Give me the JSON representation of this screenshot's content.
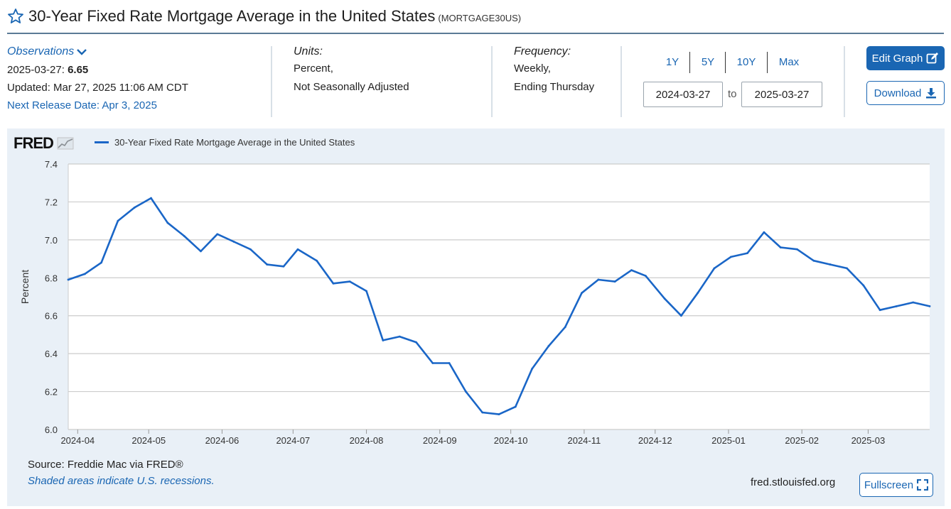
{
  "header": {
    "title": "30-Year Fixed Rate Mortgage Average in the United States",
    "series_id": "(MORTGAGE30US)"
  },
  "observations": {
    "title": "Observations",
    "latest_date": "2025-03-27:",
    "latest_value": "6.65",
    "updated": "Updated: Mar 27, 2025 11:06 AM CDT",
    "next_release": "Next Release Date: Apr 3, 2025"
  },
  "units": {
    "label": "Units:",
    "line1": "Percent,",
    "line2": "Not Seasonally Adjusted"
  },
  "frequency": {
    "label": "Frequency:",
    "line1": "Weekly,",
    "line2": "Ending Thursday"
  },
  "range": {
    "buttons": [
      "1Y",
      "5Y",
      "10Y",
      "Max"
    ],
    "start": "2024-03-27",
    "to_label": "to",
    "end": "2025-03-27"
  },
  "actions": {
    "edit_graph": "Edit Graph",
    "download": "Download",
    "fullscreen": "Fullscreen"
  },
  "footer": {
    "source": "Source: Freddie Mac via FRED®",
    "recession_note": "Shaded areas indicate U.S. recessions.",
    "site": "fred.stlouisfed.org"
  },
  "logo_text": "FRED",
  "colors": {
    "accent": "#1a66b3",
    "series_line": "#1a66c7",
    "chart_background": "#e9f0f7",
    "plot_background": "#ffffff",
    "gridline": "#cccccc"
  },
  "chart_data": {
    "type": "line",
    "title": "",
    "xlabel": "",
    "ylabel": "Percent",
    "ylim": [
      6.0,
      7.4
    ],
    "y_ticks": [
      "6.0",
      "6.2",
      "6.4",
      "6.6",
      "6.8",
      "7.0",
      "7.2",
      "7.4"
    ],
    "x_ticks": [
      "2024-04",
      "2024-05",
      "2024-06",
      "2024-07",
      "2024-08",
      "2024-09",
      "2024-10",
      "2024-11",
      "2024-12",
      "2025-01",
      "2025-02",
      "2025-03"
    ],
    "legend_position": "top-left",
    "grid": true,
    "series": [
      {
        "name": "30-Year Fixed Rate Mortgage Average in the United States",
        "x": [
          "2024-03-28",
          "2024-04-04",
          "2024-04-11",
          "2024-04-18",
          "2024-04-25",
          "2024-05-02",
          "2024-05-09",
          "2024-05-16",
          "2024-05-23",
          "2024-05-30",
          "2024-06-06",
          "2024-06-13",
          "2024-06-20",
          "2024-06-27",
          "2024-07-03",
          "2024-07-11",
          "2024-07-18",
          "2024-07-25",
          "2024-08-01",
          "2024-08-08",
          "2024-08-15",
          "2024-08-22",
          "2024-08-29",
          "2024-09-05",
          "2024-09-12",
          "2024-09-19",
          "2024-09-26",
          "2024-10-03",
          "2024-10-10",
          "2024-10-17",
          "2024-10-24",
          "2024-10-31",
          "2024-11-07",
          "2024-11-14",
          "2024-11-21",
          "2024-11-27",
          "2024-12-05",
          "2024-12-12",
          "2024-12-19",
          "2024-12-26",
          "2025-01-02",
          "2025-01-09",
          "2025-01-16",
          "2025-01-23",
          "2025-01-30",
          "2025-02-06",
          "2025-02-13",
          "2025-02-20",
          "2025-02-27",
          "2025-03-06",
          "2025-03-13",
          "2025-03-20",
          "2025-03-27"
        ],
        "values": [
          6.79,
          6.82,
          6.88,
          7.1,
          7.17,
          7.22,
          7.09,
          7.02,
          6.94,
          7.03,
          6.99,
          6.95,
          6.87,
          6.86,
          6.95,
          6.89,
          6.77,
          6.78,
          6.73,
          6.47,
          6.49,
          6.46,
          6.35,
          6.35,
          6.2,
          6.09,
          6.08,
          6.12,
          6.32,
          6.44,
          6.54,
          6.72,
          6.79,
          6.78,
          6.84,
          6.81,
          6.69,
          6.6,
          6.72,
          6.85,
          6.91,
          6.93,
          7.04,
          6.96,
          6.95,
          6.89,
          6.87,
          6.85,
          6.76,
          6.63,
          6.65,
          6.67,
          6.65
        ]
      }
    ]
  }
}
